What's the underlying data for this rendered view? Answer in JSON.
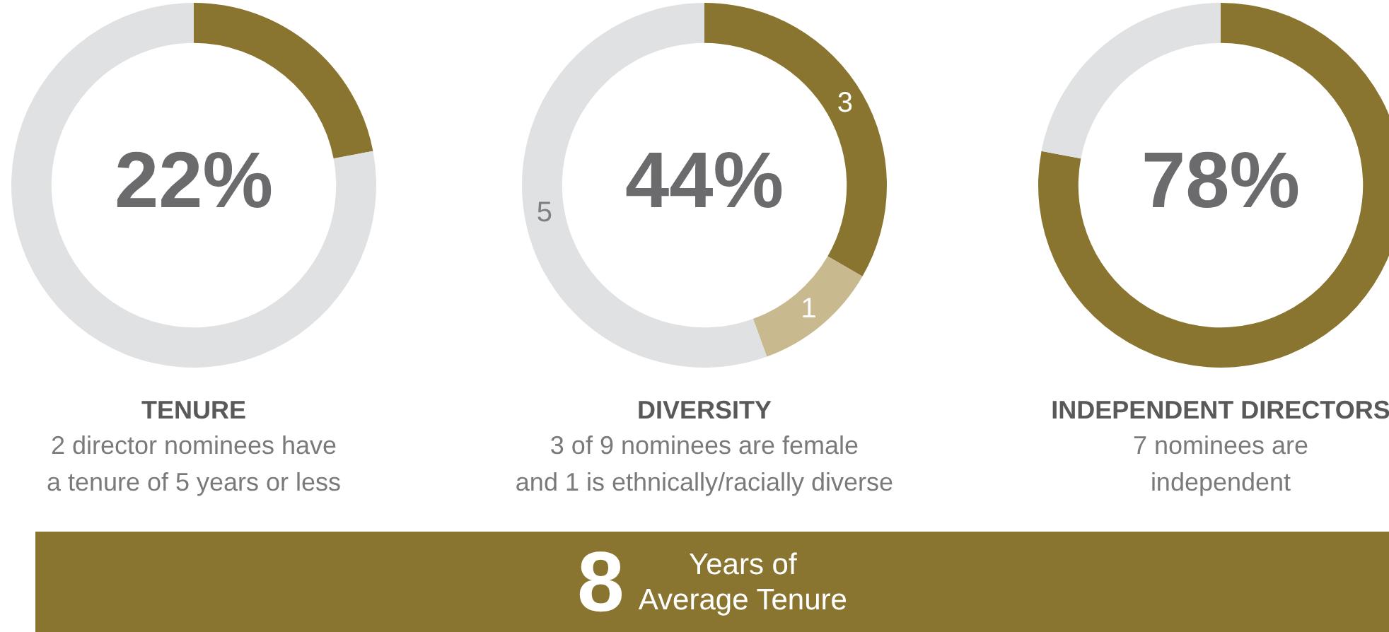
{
  "chart_data": [
    {
      "type": "donut",
      "title": "TENURE",
      "subtitle": "2 director nominees have\na tenure of 5 years or less",
      "annotations": [
        "22%"
      ],
      "categories": [
        null,
        null
      ],
      "values": [
        22,
        78
      ],
      "colors": [
        "#8a7530",
        "#e0e1e3"
      ]
    },
    {
      "type": "donut",
      "title": "DIVERSITY",
      "subtitle": "3 of 9 nominees are female\nand 1 is ethnically/racially diverse",
      "annotations": [
        "44%"
      ],
      "categories": [
        null,
        null,
        null
      ],
      "values": [
        3,
        1,
        5
      ],
      "colors": [
        "#8a7530",
        "#c8b98e",
        "#e0e1e3"
      ],
      "data_labels": true
    },
    {
      "type": "donut",
      "title": "INDEPENDENT DIRECTORS",
      "subtitle": "7 nominees are\nindependent",
      "annotations": [
        "78%"
      ],
      "categories": [
        null,
        null
      ],
      "values": [
        78,
        22
      ],
      "colors": [
        "#8a7530",
        "#e0e1e3"
      ]
    },
    {
      "type": "other",
      "annotations": [
        "8",
        "Years of\nAverage Tenure"
      ],
      "color": "#8a7530"
    }
  ]
}
